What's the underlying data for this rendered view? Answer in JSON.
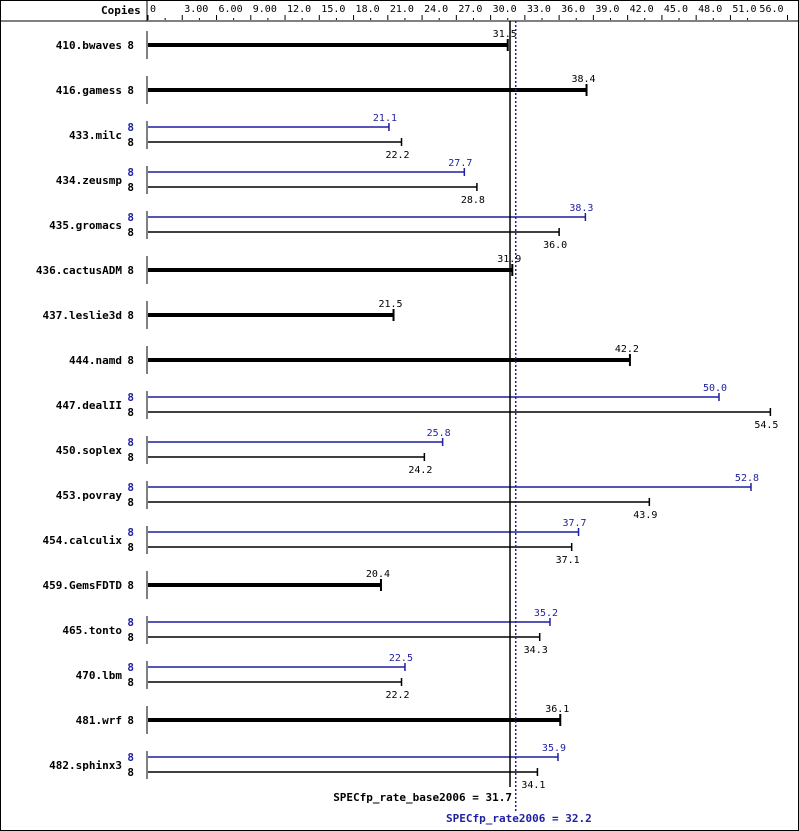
{
  "chart_data": {
    "type": "bar",
    "orientation": "horizontal",
    "copies_label": "Copies",
    "xlim": [
      0,
      56
    ],
    "ticks": [
      "0",
      "3.00",
      "6.00",
      "9.00",
      "12.0",
      "15.0",
      "18.0",
      "21.0",
      "24.0",
      "27.0",
      "30.0",
      "33.0",
      "36.0",
      "39.0",
      "42.0",
      "45.0",
      "48.0",
      "51.0",
      "56.0"
    ],
    "tick_values": [
      0,
      3,
      6,
      9,
      12,
      15,
      18,
      21,
      24,
      27,
      30,
      33,
      36,
      39,
      42,
      45,
      48,
      51,
      56
    ],
    "colors": {
      "base": "#000000",
      "peak": "#1f1fa0"
    },
    "series": [
      {
        "name": "base"
      },
      {
        "name": "peak"
      }
    ],
    "benchmarks": [
      {
        "name": "410.bwaves",
        "copies": "8",
        "base": 31.5
      },
      {
        "name": "416.gamess",
        "copies": "8",
        "base": 38.4
      },
      {
        "name": "433.milc",
        "copies": "8",
        "peak": 21.1,
        "base": 22.2
      },
      {
        "name": "434.zeusmp",
        "copies": "8",
        "peak": 27.7,
        "base": 28.8
      },
      {
        "name": "435.gromacs",
        "copies": "8",
        "peak": 38.3,
        "base": 36.0
      },
      {
        "name": "436.cactusADM",
        "copies": "8",
        "base": 31.9
      },
      {
        "name": "437.leslie3d",
        "copies": "8",
        "base": 21.5
      },
      {
        "name": "444.namd",
        "copies": "8",
        "base": 42.2
      },
      {
        "name": "447.dealII",
        "copies": "8",
        "peak": 50.0,
        "base": 54.5
      },
      {
        "name": "450.soplex",
        "copies": "8",
        "peak": 25.8,
        "base": 24.2
      },
      {
        "name": "453.povray",
        "copies": "8",
        "peak": 52.8,
        "base": 43.9
      },
      {
        "name": "454.calculix",
        "copies": "8",
        "peak": 37.7,
        "base": 37.1
      },
      {
        "name": "459.GemsFDTD",
        "copies": "8",
        "base": 20.4
      },
      {
        "name": "465.tonto",
        "copies": "8",
        "peak": 35.2,
        "base": 34.3
      },
      {
        "name": "470.lbm",
        "copies": "8",
        "peak": 22.5,
        "base": 22.2
      },
      {
        "name": "481.wrf",
        "copies": "8",
        "base": 36.1
      },
      {
        "name": "482.sphinx3",
        "copies": "8",
        "peak": 35.9,
        "base": 34.1
      }
    ],
    "reference_lines": [
      {
        "name": "base",
        "label": "SPECfp_rate_base2006 = 31.7",
        "value": 31.7
      },
      {
        "name": "peak",
        "label": "SPECfp_rate2006 = 32.2",
        "value": 32.2
      }
    ]
  }
}
